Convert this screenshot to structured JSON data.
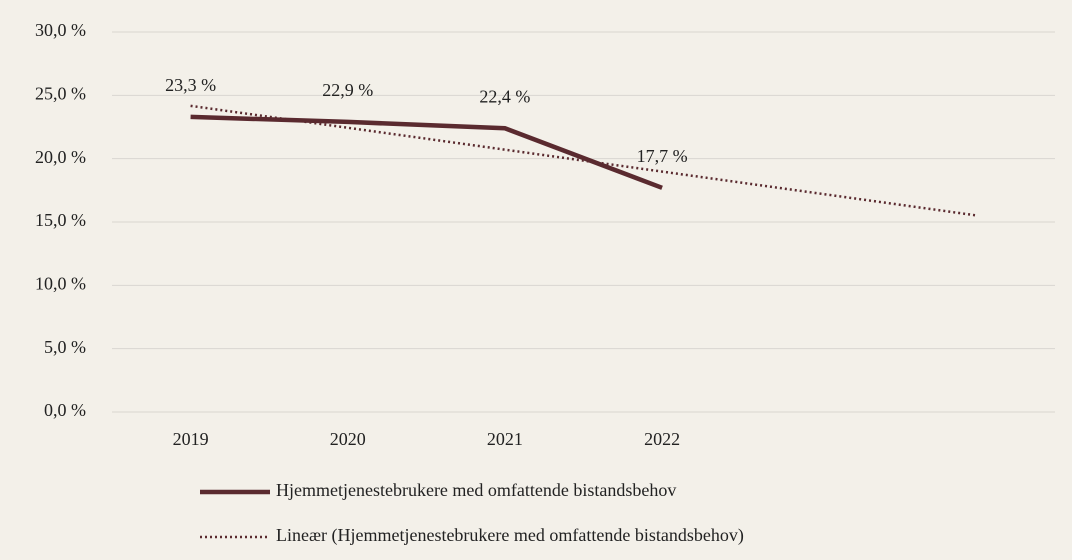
{
  "chart_data": {
    "type": "line",
    "categories": [
      "2019",
      "2020",
      "2021",
      "2022",
      null,
      null
    ],
    "series": [
      {
        "name": "Hjemmetjenestebrukere med omfattende bistandsbehov",
        "color": "#5a2a2f",
        "style": "solid",
        "values": [
          23.3,
          22.9,
          22.4,
          17.7,
          null,
          null
        ],
        "value_labels": [
          "23,3 %",
          "22,9 %",
          "22,4 %",
          "17,7 %",
          null,
          null
        ]
      },
      {
        "name": "Lineær (Hjemmetjenestebrukere med omfattende bistandsbehov)",
        "color": "#5a2a2f",
        "style": "dotted",
        "values": [
          24.17,
          22.44,
          20.71,
          18.98,
          17.25,
          15.52
        ]
      }
    ],
    "ylim": [
      0,
      30
    ],
    "yticks": [
      {
        "value": 0,
        "label": "0,0 %"
      },
      {
        "value": 5,
        "label": "5,0 %"
      },
      {
        "value": 10,
        "label": "10,0 %"
      },
      {
        "value": 15,
        "label": "15,0 %"
      },
      {
        "value": 20,
        "label": "20,0 %"
      },
      {
        "value": 25,
        "label": "25,0 %"
      },
      {
        "value": 30,
        "label": "30,0 %"
      }
    ],
    "grid": true,
    "legend": "bottom"
  }
}
